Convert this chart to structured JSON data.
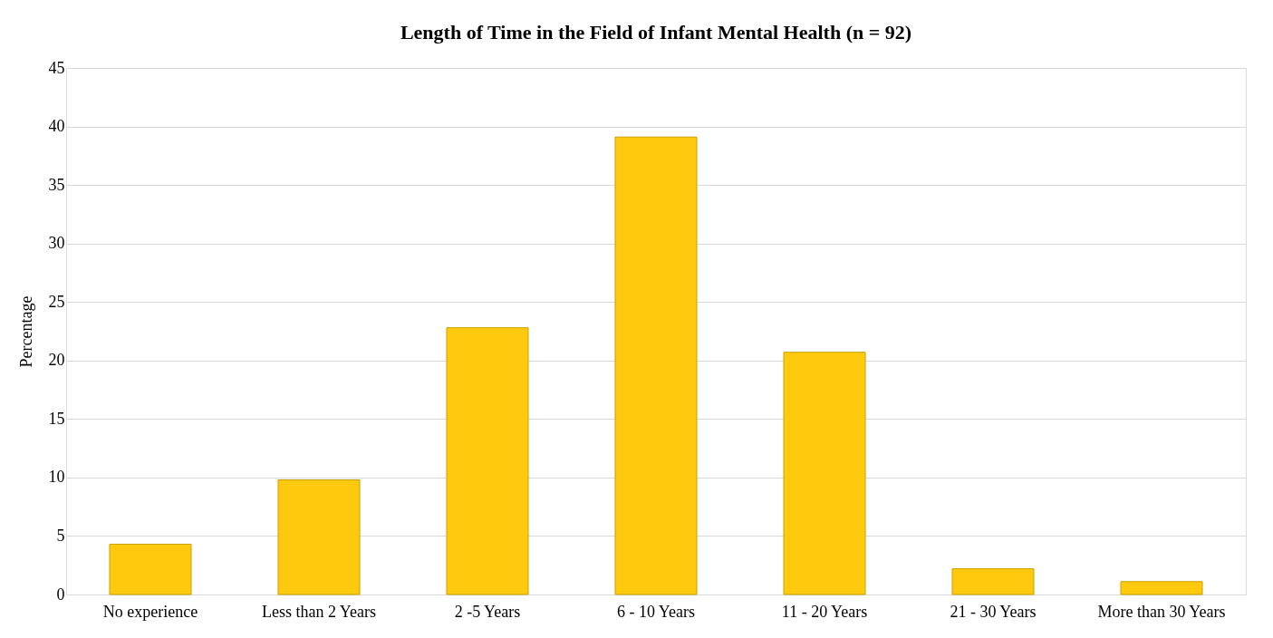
{
  "chart_data": {
    "type": "bar",
    "title": "Length of Time in the Field of Infant Mental Health (n = 92)",
    "ylabel": "Percentage",
    "categories": [
      "No experience",
      "Less than 2 Years",
      "2 -5 Years",
      "6 - 10 Years",
      "11 - 20 Years",
      "21 - 30 Years",
      "More than 30 Years"
    ],
    "values": [
      4.3,
      9.8,
      22.8,
      39.1,
      20.7,
      2.2,
      1.1
    ],
    "color": "#ffc90e",
    "ylim": [
      0,
      45
    ],
    "yticks": [
      0,
      5,
      10,
      15,
      20,
      25,
      30,
      35,
      40,
      45
    ],
    "grid": "y"
  }
}
